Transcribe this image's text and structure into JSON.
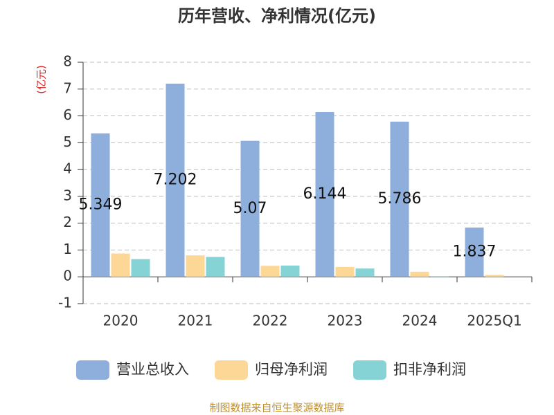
{
  "chart_data": {
    "type": "bar",
    "title": "历年营收、净利情况(亿元)",
    "y_label": "(亿元)",
    "categories": [
      "2020",
      "2021",
      "2022",
      "2023",
      "2024",
      "2025Q1"
    ],
    "series": [
      {
        "name": "营业总收入",
        "color": "#8eaedb",
        "values": [
          5.349,
          7.202,
          5.07,
          6.144,
          5.786,
          1.837
        ],
        "show_labels": true
      },
      {
        "name": "归母净利润",
        "color": "#fdd795",
        "values": [
          0.87,
          0.8,
          0.41,
          0.37,
          0.19,
          0.07
        ]
      },
      {
        "name": "扣非净利润",
        "color": "#86d3d5",
        "values": [
          0.66,
          0.74,
          0.42,
          0.31,
          0.02,
          0
        ]
      }
    ],
    "ylim": [
      -1,
      8
    ],
    "yticks": [
      -1,
      0,
      1,
      2,
      3,
      4,
      5,
      6,
      7,
      8
    ],
    "grid": true,
    "source": "制图数据来自恒生聚源数据库"
  }
}
